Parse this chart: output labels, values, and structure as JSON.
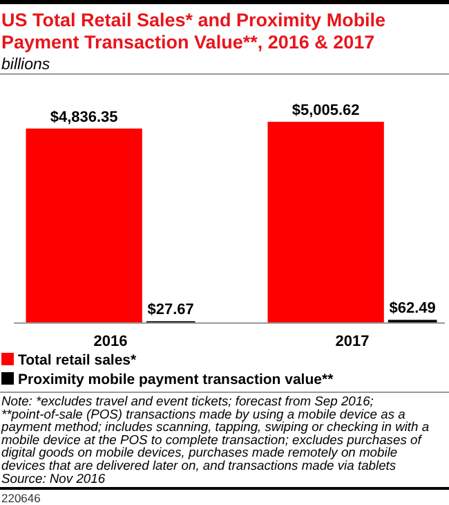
{
  "chart_data": {
    "type": "bar",
    "title": "US Total Retail Sales* and Proximity Mobile Payment Transaction Value**, 2016 & 2017",
    "subtitle": "billions",
    "categories": [
      "2016",
      "2017"
    ],
    "series": [
      {
        "name": "Total retail sales*",
        "color": "#ff0000",
        "values": [
          4836.35,
          5005.62
        ],
        "value_labels": [
          "$4,836.35",
          "$5,005.62"
        ]
      },
      {
        "name": "Proximity mobile payment transaction value**",
        "color": "#000000",
        "values": [
          27.67,
          62.49
        ],
        "value_labels": [
          "$27.67",
          "$62.49"
        ]
      }
    ],
    "legend": "bottom",
    "annotations": [
      "Note: *excludes travel and event tickets; forecast from Sep 2016;",
      "**point-of-sale (POS) transactions made by using a mobile device as a",
      "payment method; includes scanning, tapping, swiping or checking in with a",
      "mobile device at the POS to complete transaction; excludes purchases of",
      "digital goods on mobile devices, purchases made remotely on mobile",
      "devices that are delivered later on, and transactions made via tablets",
      "Source: Nov 2016",
      "220646"
    ]
  }
}
